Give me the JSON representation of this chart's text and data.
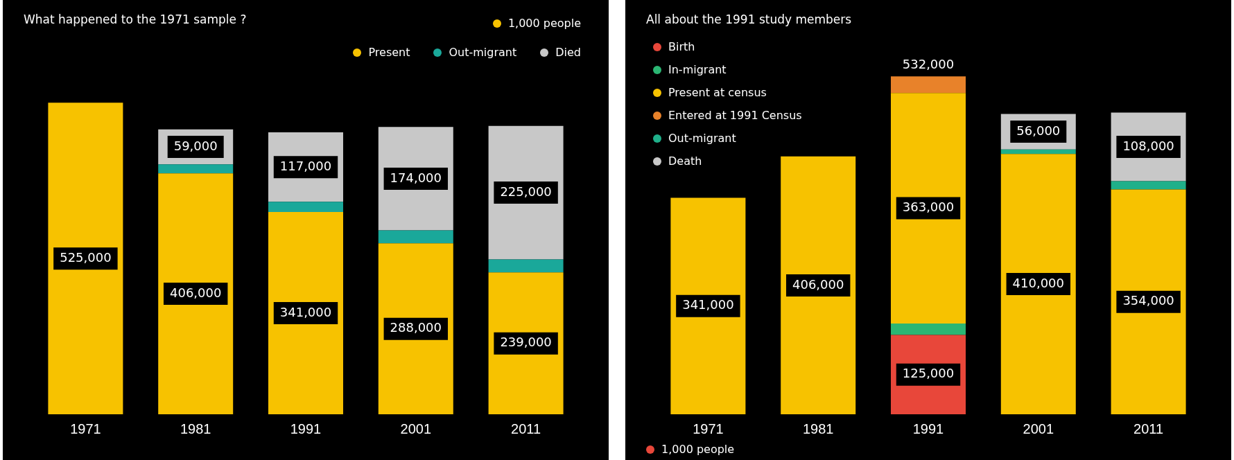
{
  "chart_data": [
    {
      "type": "bar",
      "title": "What happened to the 1971 sample ?",
      "categories": [
        "1971",
        "1981",
        "1991",
        "2001",
        "2011"
      ],
      "stacked": true,
      "tick_labels": "x",
      "legend": "top right",
      "annotations": [
        "1,000 people"
      ],
      "series": [
        {
          "name": "Present",
          "color": "#f7c200",
          "values": [
            525000,
            406000,
            341000,
            288000,
            239000
          ],
          "value_labels": [
            "525,000",
            "406,000",
            "341,000",
            "288,000",
            "239,000"
          ]
        },
        {
          "name": "Out-migrant",
          "color": "#1aa89a",
          "values": [
            null,
            15000,
            17000,
            22000,
            22000
          ]
        },
        {
          "name": "Died",
          "color": "#c8c8c8",
          "values": [
            null,
            59000,
            117000,
            174000,
            225000
          ],
          "value_labels": [
            null,
            "59,000",
            "117,000",
            "174,000",
            "225,000"
          ]
        }
      ]
    },
    {
      "type": "bar",
      "title": "All about the 1991 study members",
      "categories": [
        "1971",
        "1981",
        "1991",
        "2001",
        "2011"
      ],
      "stacked": true,
      "tick_labels": "x",
      "legend": "top left",
      "annotations": [
        "1,000 people"
      ],
      "totals": [
        null,
        null,
        "532,000",
        null,
        null
      ],
      "series": [
        {
          "name": "Birth",
          "color": "#e8473a",
          "values": [
            null,
            null,
            125000,
            null,
            null
          ],
          "value_labels": [
            null,
            null,
            "125,000",
            null,
            null
          ]
        },
        {
          "name": "In-migrant",
          "color": "#2bb673",
          "values": [
            null,
            null,
            18000,
            null,
            null
          ]
        },
        {
          "name": "Present at census",
          "color": "#f7c200",
          "values": [
            341000,
            406000,
            363000,
            410000,
            354000
          ],
          "value_labels": [
            "341,000",
            "406,000",
            "363,000",
            "410,000",
            "354,000"
          ]
        },
        {
          "name": "Entered at 1991 Census",
          "color": "#e8822a",
          "values": [
            null,
            null,
            26000,
            null,
            null
          ]
        },
        {
          "name": "Out-migrant",
          "color": "#1fb08a",
          "values": [
            null,
            null,
            null,
            7000,
            13000
          ]
        },
        {
          "name": "Death",
          "color": "#c8c8c8",
          "values": [
            null,
            null,
            null,
            56000,
            108000
          ],
          "value_labels": [
            null,
            null,
            null,
            "56,000",
            "108,000"
          ]
        }
      ]
    }
  ]
}
